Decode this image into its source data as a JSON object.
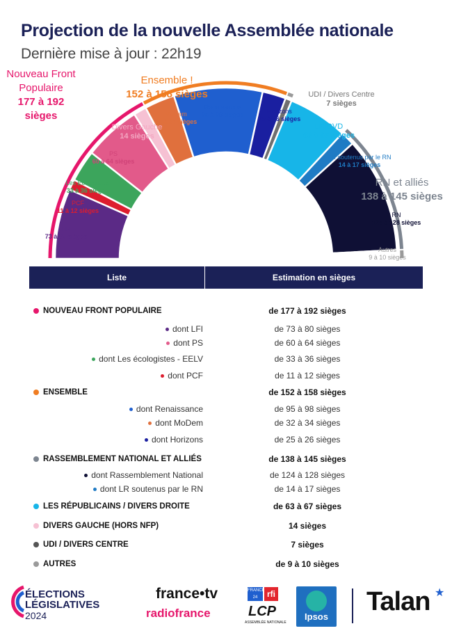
{
  "header": {
    "title": "Projection de la nouvelle Assemblée nationale",
    "subtitle": "Dernière mise à jour : 22h19"
  },
  "chart_data": {
    "type": "hemicycle",
    "title": "Projection de la nouvelle Assemblée nationale",
    "series": [
      {
        "name": "LFI",
        "range": "73 à 80 sièges",
        "low": 73,
        "high": 80,
        "color": "#5b2a86"
      },
      {
        "name": "PCF",
        "range": "11 à 12 sièges",
        "low": 11,
        "high": 12,
        "color": "#dd1d2e"
      },
      {
        "name": "Les Ecologistes",
        "range": "33 à 36 sièges",
        "low": 33,
        "high": 36,
        "color": "#3ca55c"
      },
      {
        "name": "PS",
        "range": "60 à 64 sièges",
        "low": 60,
        "high": 64,
        "color": "#e25a8a"
      },
      {
        "name": "Divers Gauche",
        "range": "14 sièges",
        "low": 14,
        "high": 14,
        "color": "#f6c1d3"
      },
      {
        "name": "MoDem",
        "range": "32 à 34 sièges",
        "low": 32,
        "high": 34,
        "color": "#e0703d"
      },
      {
        "name": "Renaissance",
        "range": "95 à 98 sièges",
        "low": 95,
        "high": 98,
        "color": "#1f5fcf"
      },
      {
        "name": "Horizons",
        "range": "25 à 26 sièges",
        "low": 25,
        "high": 26,
        "color": "#1a1fa0"
      },
      {
        "name": "UDI / Divers Centre",
        "range": "7 sièges",
        "low": 7,
        "high": 7,
        "color": "#6f6f6f"
      },
      {
        "name": "LR/DVD",
        "range": "63 à 67 sièges",
        "low": 63,
        "high": 67,
        "color": "#17b5e8"
      },
      {
        "name": "LR soutenus par le RN",
        "range": "14 à 17 sièges",
        "low": 14,
        "high": 17,
        "color": "#1f7bc4"
      },
      {
        "name": "RN",
        "range": "124 à 128 sièges",
        "low": 124,
        "high": 128,
        "color": "#0f1035"
      },
      {
        "name": "Autres",
        "range": "9 à 10 sièges",
        "low": 9,
        "high": 10,
        "color": "#ffffff"
      }
    ],
    "groups": [
      {
        "name": "Nouveau Front Populaire",
        "range": "177 à 192 sièges",
        "color": "#e6166b"
      },
      {
        "name": "Ensemble !",
        "range": "152 à 158 sièges",
        "color": "#f07d22"
      },
      {
        "name": "RN et alliés",
        "range": "138 à 145 sièges",
        "color": "#7d8590"
      }
    ],
    "udi_label": "UDI / Divers Centre",
    "udi_value": "7 sièges"
  },
  "table": {
    "col1": "Liste",
    "col2": "Estimation en sièges",
    "rows": [
      {
        "level": "main",
        "label": "NOUVEAU FRONT POPULAIRE",
        "value": "de 177 à 192 sièges",
        "color": "#e6166b"
      },
      {
        "level": "sub",
        "label": "dont LFI",
        "value": "de 73 à 80 sièges",
        "color": "#5b2a86"
      },
      {
        "level": "sub",
        "label": "dont PS",
        "value": "de 60 à 64 sièges",
        "color": "#e25a8a"
      },
      {
        "level": "sub",
        "label": "dont Les écologistes - EELV",
        "value": "de 33 à 36 sièges",
        "color": "#3ca55c"
      },
      {
        "level": "sub",
        "label": "dont PCF",
        "value": "de 11 à 12 sièges",
        "color": "#dd1d2e"
      },
      {
        "level": "main",
        "label": "ENSEMBLE",
        "value": "de 152 à 158 sièges",
        "color": "#f07d22"
      },
      {
        "level": "sub",
        "label": "dont Renaissance",
        "value": "de 95 à 98 sièges",
        "color": "#1f5fcf"
      },
      {
        "level": "sub",
        "label": "dont MoDem",
        "value": "de 32 à 34 sièges",
        "color": "#e0703d"
      },
      {
        "level": "sub",
        "label": "dont Horizons",
        "value": "de 25 à 26 sièges",
        "color": "#1a1fa0"
      },
      {
        "level": "main",
        "label": "RASSEMBLEMENT NATIONAL ET ALLIÉS",
        "value": "de 138 à 145 sièges",
        "color": "#7d8590"
      },
      {
        "level": "sub",
        "label": "dont Rassemblement National",
        "value": "de 124 à 128 sièges",
        "color": "#0f1035"
      },
      {
        "level": "sub",
        "label": "dont LR soutenus par le RN",
        "value": "de 14 à 17 sièges",
        "color": "#1f7bc4"
      },
      {
        "level": "main",
        "label": "LES RÉPUBLICAINS / DIVERS DROITE",
        "value": "de 63 à 67 sièges",
        "color": "#17b5e8"
      },
      {
        "level": "main",
        "label": "DIVERS GAUCHE (HORS NFP)",
        "value": "14 sièges",
        "color": "#f6c1d3"
      },
      {
        "level": "main",
        "label": "UDI / DIVERS CENTRE",
        "value": "7 sièges",
        "color": "#555555"
      },
      {
        "level": "main",
        "label": "AUTRES",
        "value": "de 9 à 10 sièges",
        "color": "#9a9a9a"
      }
    ]
  },
  "footer": {
    "elections_line1": "ÉLECTIONS",
    "elections_line2": "LÉGISLATIVES",
    "elections_year": "2024",
    "francetv": "france•tv",
    "radiofrance": "radiofrance",
    "france24": "FRANCE 24",
    "rfi": "rfi",
    "lcp": "LCP",
    "lcp_sub": "ASSEMBLÉE NATIONALE",
    "ipsos": "Ipsos",
    "talan": "Talan"
  }
}
